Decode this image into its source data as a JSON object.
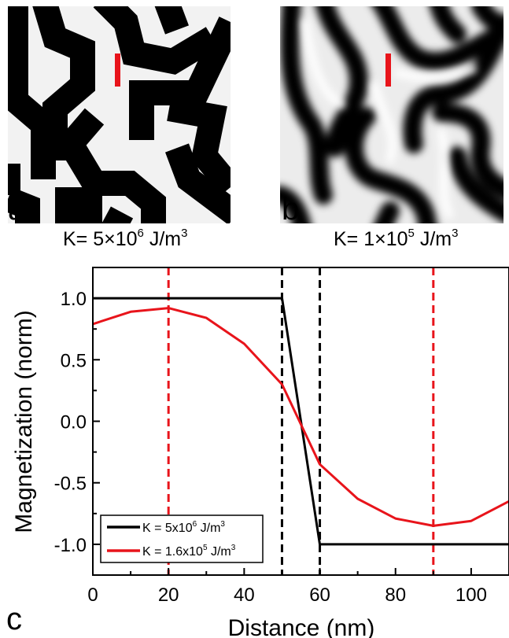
{
  "panels": {
    "a": {
      "letter": "a",
      "caption": "K= 5×10",
      "caption_exp": "6",
      "caption_unit": " J/m",
      "caption_unit_exp": "3"
    },
    "b": {
      "letter": "b",
      "caption": "K= 1×10",
      "caption_exp": "5",
      "caption_unit": " J/m",
      "caption_unit_exp": "3"
    },
    "c": {
      "letter": "c"
    }
  },
  "colors": {
    "red": "#e8141b",
    "black": "#000000"
  },
  "chart_data": {
    "type": "line",
    "xlabel": "Distance (nm)",
    "ylabel": "Magnetization (norm)",
    "xlim": [
      0,
      110
    ],
    "ylim": [
      -1.25,
      1.25
    ],
    "xticks": [
      0,
      20,
      40,
      60,
      80,
      100
    ],
    "yticks": [
      1.0,
      0.5,
      0.0,
      -0.5,
      -1.0
    ],
    "xtick_labels": [
      "0",
      "20",
      "40",
      "60",
      "80",
      "100"
    ],
    "ytick_labels": [
      "1.0",
      "0.5",
      "0.0",
      "-0.5",
      "-1.0"
    ],
    "grid": false,
    "legend_position": "bottom-left",
    "series": [
      {
        "name": "K = 5x10",
        "name_exp": "6",
        "name_unit": " J/m",
        "name_unit_exp": "3",
        "color": "#000000",
        "x": [
          0,
          50,
          60,
          110
        ],
        "y": [
          1.0,
          1.0,
          -1.0,
          -1.0
        ]
      },
      {
        "name": "K = 1.6x10",
        "name_exp": "5",
        "name_unit": " J/m",
        "name_unit_exp": "3",
        "color": "#e8141b",
        "x": [
          0,
          10,
          20,
          30,
          40,
          50,
          60,
          70,
          80,
          90,
          100,
          110
        ],
        "y": [
          0.79,
          0.89,
          0.92,
          0.84,
          0.63,
          0.3,
          -0.35,
          -0.63,
          -0.79,
          -0.85,
          -0.81,
          -0.65
        ]
      }
    ],
    "vlines": [
      {
        "x": 20,
        "color": "#e8141b"
      },
      {
        "x": 50,
        "color": "#000000"
      },
      {
        "x": 60,
        "color": "#000000"
      },
      {
        "x": 90,
        "color": "#e8141b"
      }
    ]
  }
}
